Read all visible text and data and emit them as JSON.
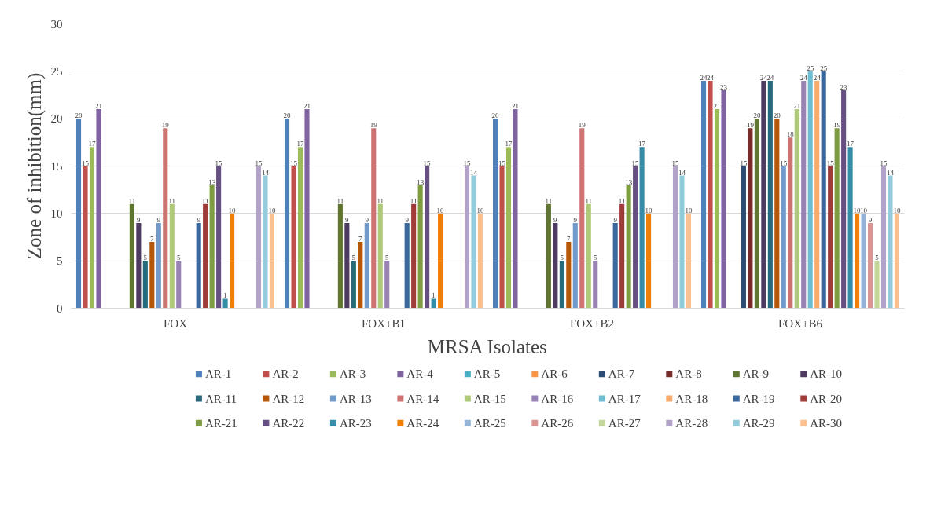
{
  "chart_data": {
    "type": "bar",
    "xlabel": "MRSA Isolates",
    "ylabel": "Zone of inhibition(mm)",
    "categories": [
      "FOX",
      "FOX+B1",
      "FOX+B2",
      "FOX+B6"
    ],
    "ylim": [
      0,
      30
    ],
    "yticks": [
      0,
      5,
      10,
      15,
      20,
      25,
      30
    ],
    "grid": "y",
    "legend": "bottom",
    "series": [
      {
        "name": "AR-1",
        "color": "#4f81bd",
        "values": [
          20,
          20,
          20,
          24
        ],
        "value_labels": [
          "20",
          "20",
          "20",
          "24"
        ]
      },
      {
        "name": "AR-2",
        "color": "#c0504d",
        "values": [
          15,
          15,
          15,
          24
        ],
        "value_labels": [
          "15",
          "15",
          "15",
          "24"
        ]
      },
      {
        "name": "AR-3",
        "color": "#9bbb59",
        "values": [
          17,
          17,
          17,
          21
        ],
        "value_labels": [
          "17",
          "17",
          "17",
          "21"
        ]
      },
      {
        "name": "AR-4",
        "color": "#8064a2",
        "values": [
          21,
          21,
          21,
          23
        ],
        "value_labels": [
          "21",
          "21",
          "21",
          "23"
        ]
      },
      {
        "name": "AR-5",
        "color": "#4bacc6",
        "values": [
          0,
          0,
          0,
          0
        ],
        "value_labels": [
          null,
          null,
          null,
          null
        ]
      },
      {
        "name": "AR-6",
        "color": "#f79646",
        "values": [
          0,
          0,
          0,
          0
        ],
        "value_labels": [
          null,
          null,
          null,
          null
        ]
      },
      {
        "name": "AR-7",
        "color": "#2c4d75",
        "values": [
          0,
          0,
          0,
          15
        ],
        "value_labels": [
          null,
          null,
          null,
          "15"
        ]
      },
      {
        "name": "AR-8",
        "color": "#772c2a",
        "values": [
          0,
          0,
          0,
          19
        ],
        "value_labels": [
          null,
          null,
          null,
          "19"
        ]
      },
      {
        "name": "AR-9",
        "color": "#5f7530",
        "values": [
          11,
          11,
          11,
          20
        ],
        "value_labels": [
          "11",
          "11",
          "11",
          "20"
        ]
      },
      {
        "name": "AR-10",
        "color": "#4d3b62",
        "values": [
          9,
          9,
          9,
          24
        ],
        "value_labels": [
          "9",
          "9",
          "9",
          "24"
        ]
      },
      {
        "name": "AR-11",
        "color": "#276a7c",
        "values": [
          5,
          5,
          5,
          24
        ],
        "value_labels": [
          "5",
          "5",
          "5",
          "24"
        ]
      },
      {
        "name": "AR-12",
        "color": "#b65708",
        "values": [
          7,
          7,
          7,
          20
        ],
        "value_labels": [
          "7",
          "7",
          "7",
          "20"
        ]
      },
      {
        "name": "AR-13",
        "color": "#729aca",
        "values": [
          9,
          9,
          9,
          15
        ],
        "value_labels": [
          "9",
          "9",
          "9",
          "15"
        ]
      },
      {
        "name": "AR-14",
        "color": "#cd7371",
        "values": [
          19,
          19,
          19,
          18
        ],
        "value_labels": [
          "19",
          "19",
          "19",
          "18"
        ]
      },
      {
        "name": "AR-15",
        "color": "#afc97a",
        "values": [
          11,
          11,
          11,
          21
        ],
        "value_labels": [
          "11",
          "11",
          "11",
          "21"
        ]
      },
      {
        "name": "AR-16",
        "color": "#9983b5",
        "values": [
          5,
          5,
          5,
          24
        ],
        "value_labels": [
          "5",
          "5",
          "5",
          "24"
        ]
      },
      {
        "name": "AR-17",
        "color": "#6fbdd1",
        "values": [
          0,
          0,
          0,
          25
        ],
        "value_labels": [
          null,
          null,
          null,
          "25"
        ]
      },
      {
        "name": "AR-18",
        "color": "#f9ab6b",
        "values": [
          0,
          0,
          0,
          24
        ],
        "value_labels": [
          null,
          null,
          null,
          "24"
        ]
      },
      {
        "name": "AR-19",
        "color": "#3a679c",
        "values": [
          9,
          9,
          9,
          25
        ],
        "value_labels": [
          "9",
          "9",
          "9",
          "25"
        ]
      },
      {
        "name": "AR-20",
        "color": "#9f3b38",
        "values": [
          11,
          11,
          11,
          15
        ],
        "value_labels": [
          "11",
          "11",
          "11",
          "15"
        ]
      },
      {
        "name": "AR-21",
        "color": "#7e9c40",
        "values": [
          13,
          13,
          13,
          19
        ],
        "value_labels": [
          "13",
          "13",
          "13",
          "19"
        ]
      },
      {
        "name": "AR-22",
        "color": "#664f83",
        "values": [
          15,
          15,
          15,
          23
        ],
        "value_labels": [
          "15",
          "15",
          "15",
          "23"
        ]
      },
      {
        "name": "AR-23",
        "color": "#358ca6",
        "values": [
          1,
          1,
          17,
          17
        ],
        "value_labels": [
          "1",
          "1",
          "17",
          "17"
        ]
      },
      {
        "name": "AR-24",
        "color": "#f07f09",
        "values": [
          10,
          10,
          10,
          10
        ],
        "value_labels": [
          "10",
          "10",
          "10",
          "10"
        ]
      },
      {
        "name": "AR-25",
        "color": "#95b3d7",
        "values": [
          0,
          0,
          0,
          10
        ],
        "value_labels": [
          null,
          null,
          null,
          "10"
        ]
      },
      {
        "name": "AR-26",
        "color": "#d99694",
        "values": [
          0,
          0,
          0,
          9
        ],
        "value_labels": [
          null,
          null,
          null,
          "9"
        ]
      },
      {
        "name": "AR-27",
        "color": "#c3d69b",
        "values": [
          0,
          0,
          0,
          5
        ],
        "value_labels": [
          null,
          null,
          null,
          "5"
        ]
      },
      {
        "name": "AR-28",
        "color": "#b3a2c7",
        "values": [
          15,
          15,
          15,
          15
        ],
        "value_labels": [
          "15",
          "15",
          "15",
          "15"
        ]
      },
      {
        "name": "AR-29",
        "color": "#93cddd",
        "values": [
          14,
          14,
          14,
          14
        ],
        "value_labels": [
          "14",
          "14",
          "14",
          "14"
        ]
      },
      {
        "name": "AR-30",
        "color": "#fac090",
        "values": [
          10,
          10,
          10,
          10
        ],
        "value_labels": [
          "10",
          "10",
          "10",
          "10"
        ]
      }
    ]
  }
}
